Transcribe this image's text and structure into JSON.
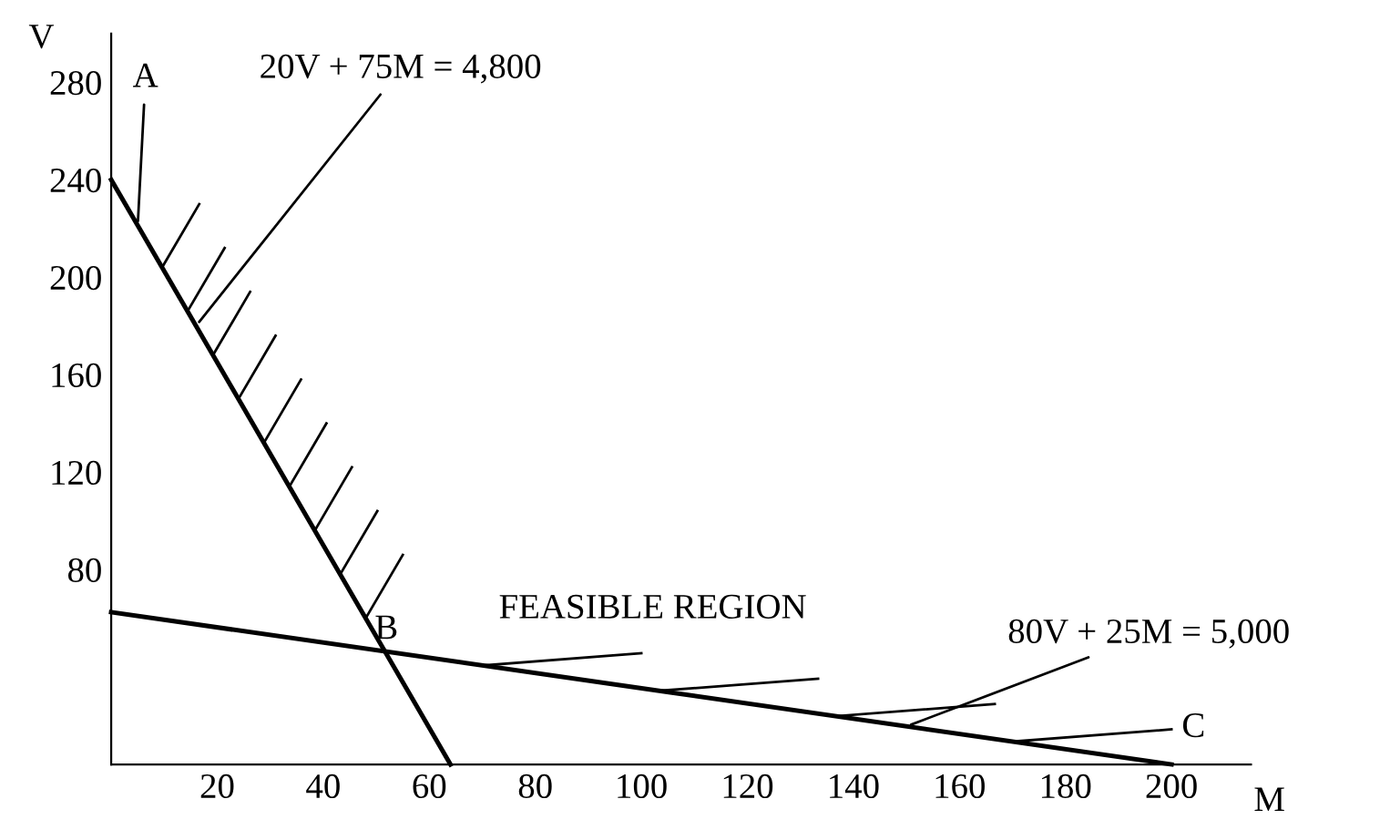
{
  "chart_data": {
    "type": "line",
    "xlabel": "M",
    "ylabel": "V",
    "series": [
      {
        "color": "#000000",
        "x": [
          0,
          64
        ],
        "values": [
          240,
          0
        ]
      },
      {
        "color": "#000000",
        "x": [
          0,
          200
        ],
        "values": [
          62.5,
          0
        ]
      }
    ],
    "xlim": [
      0,
      215
    ],
    "ylim": [
      0,
      300
    ],
    "xticks": [
      20,
      40,
      60,
      80,
      100,
      120,
      140,
      160,
      180,
      200
    ],
    "yticks": [
      80,
      120,
      160,
      200,
      240,
      280
    ],
    "annotations": [
      {
        "text": "A",
        "x": 5,
        "y": 221
      },
      {
        "text": "20V + 75M = 4,800",
        "x": 16,
        "y": 180
      },
      {
        "text": "B",
        "x": 51.6,
        "y": 46.4
      },
      "FEASIBLE REGION",
      {
        "text": "80V + 25M = 5,000",
        "x": 150,
        "y": 15.6
      },
      {
        "text": "C",
        "x": 190,
        "y": 3
      }
    ],
    "grid": false,
    "legend": false,
    "marker": "none",
    "line_style": "solid"
  }
}
